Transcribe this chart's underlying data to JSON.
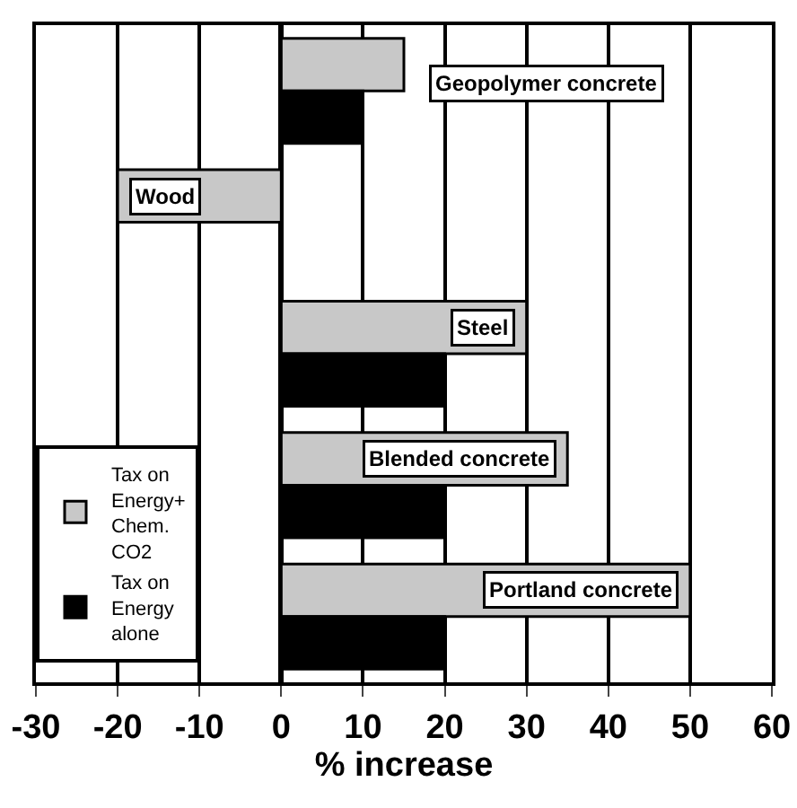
{
  "chart_data": {
    "type": "bar",
    "orientation": "horizontal",
    "xlabel": "% increase",
    "categories": [
      "Geopolymer concrete",
      "Wood",
      "Steel",
      "Blended concrete",
      "Portland concrete"
    ],
    "series": [
      {
        "name": "Tax on Energy+ Chem. CO2",
        "color": "#c8c8c8",
        "values": [
          15,
          -20,
          30,
          35,
          50
        ]
      },
      {
        "name": "Tax on Energy alone",
        "color": "#000000",
        "values": [
          10,
          0,
          20,
          20,
          20
        ]
      }
    ],
    "xlim": [
      -30,
      60
    ],
    "xticks": [
      -30,
      -20,
      -10,
      0,
      10,
      20,
      30,
      40,
      50,
      60
    ],
    "grid": "x",
    "legend": "left",
    "tick_labels": "x"
  }
}
